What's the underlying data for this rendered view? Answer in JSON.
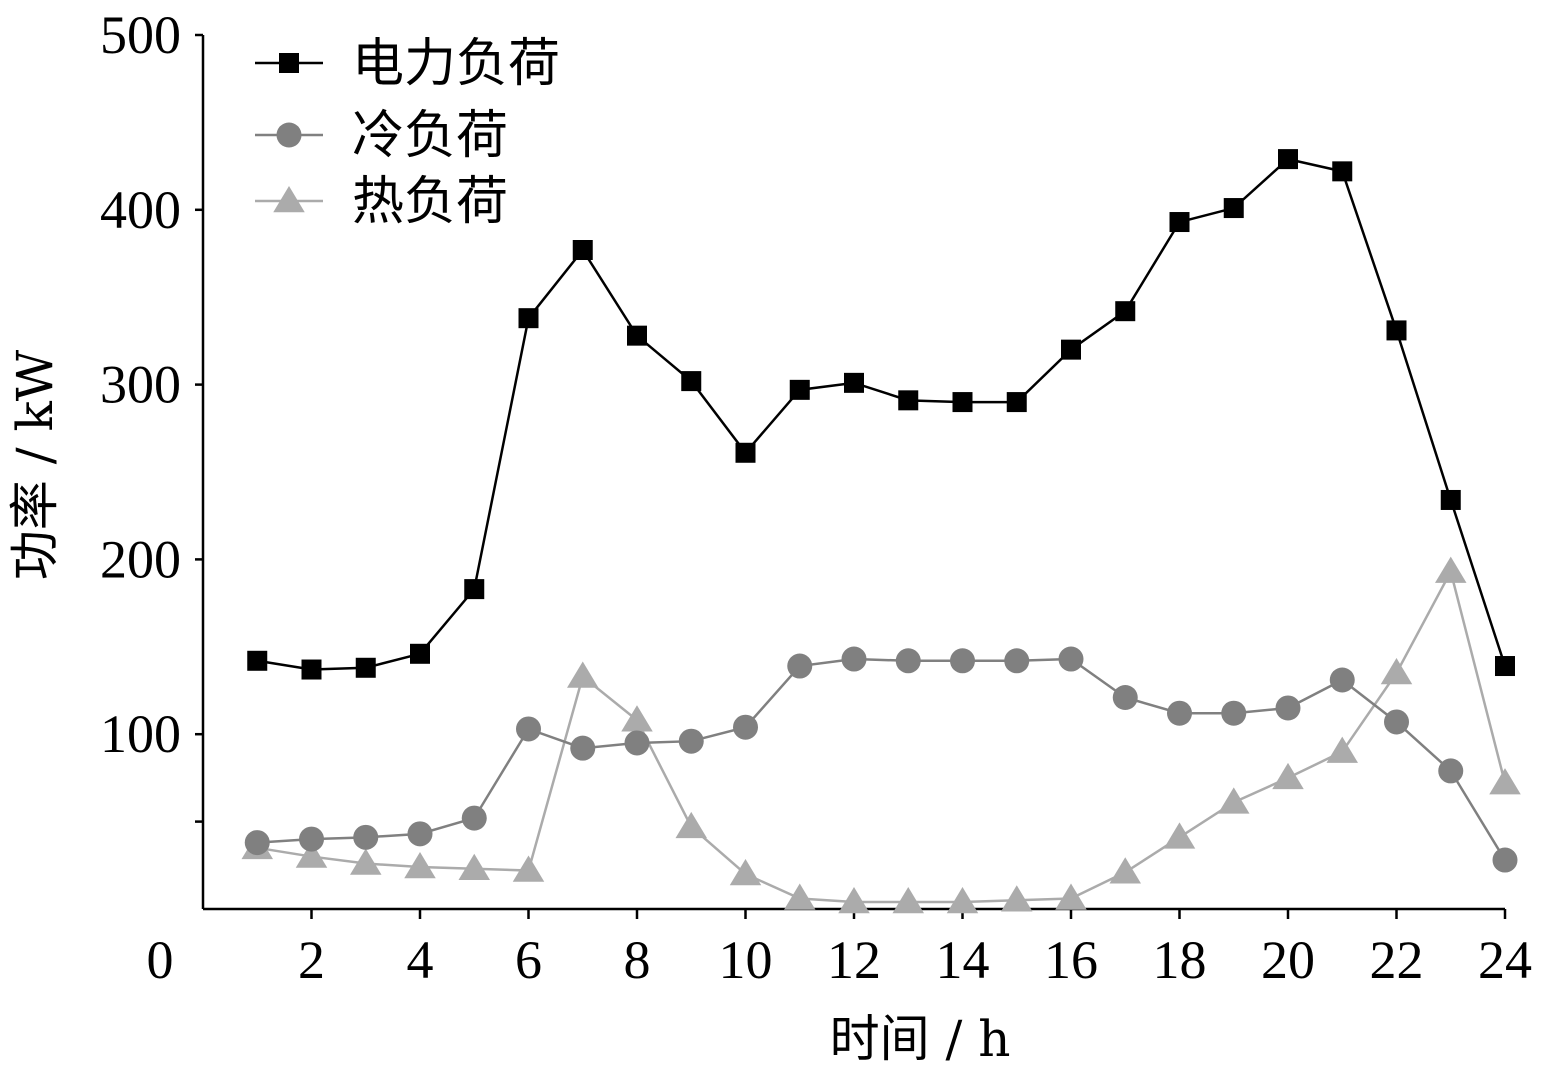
{
  "chart_data": {
    "type": "line",
    "title": "",
    "xlabel": "时间 / h",
    "ylabel": "功率 / kW",
    "xlim": [
      0,
      24
    ],
    "ylim": [
      0,
      500
    ],
    "x_ticks": [
      "0",
      "2",
      "4",
      "6",
      "8",
      "10",
      "12",
      "14",
      "16",
      "18",
      "20",
      "22",
      "24"
    ],
    "y_ticks": [
      "100",
      "200",
      "300",
      "400",
      "500"
    ],
    "grid": false,
    "legend_position": "top-left",
    "x": [
      1,
      2,
      3,
      4,
      5,
      6,
      7,
      8,
      9,
      10,
      11,
      12,
      13,
      14,
      15,
      16,
      17,
      18,
      19,
      20,
      21,
      22,
      23,
      24
    ],
    "series": [
      {
        "name": "电力负荷",
        "marker": "square",
        "color": "#000000",
        "values": [
          142,
          137,
          138,
          146,
          183,
          338,
          377,
          328,
          302,
          261,
          297,
          301,
          291,
          290,
          290,
          320,
          342,
          393,
          401,
          429,
          422,
          331,
          234,
          139
        ]
      },
      {
        "name": "冷负荷",
        "marker": "circle",
        "color": "#808080",
        "values": [
          38,
          40,
          41,
          43,
          52,
          103,
          92,
          95,
          96,
          104,
          139,
          143,
          142,
          142,
          142,
          143,
          121,
          112,
          112,
          115,
          131,
          107,
          79,
          28
        ]
      },
      {
        "name": "热负荷",
        "marker": "triangle",
        "color": "#ababab",
        "values": [
          35,
          30,
          26,
          24,
          23,
          22,
          133,
          108,
          47,
          20,
          6,
          4,
          4,
          4,
          5,
          6,
          21,
          41,
          61,
          75,
          90,
          135,
          193,
          72
        ]
      }
    ]
  }
}
